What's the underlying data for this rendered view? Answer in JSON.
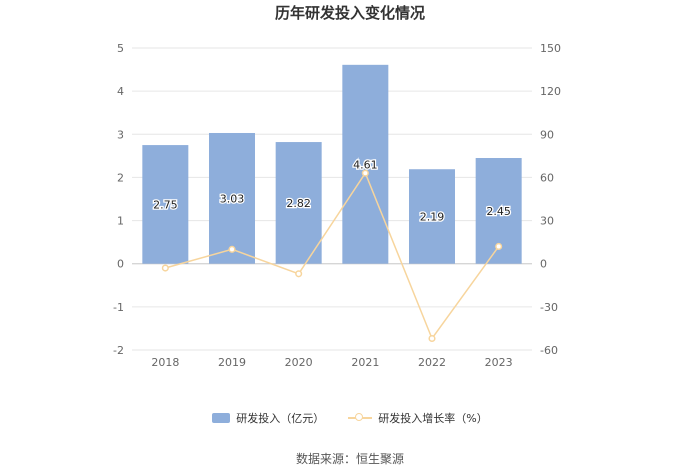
{
  "title": "历年研发投入变化情况",
  "source": "数据来源：恒生聚源",
  "colors": {
    "bar": "#8eaedb",
    "line": "#f7d59d",
    "grid": "#e6e6e6",
    "axis_text": "#666666"
  },
  "chart_data": {
    "type": "bar",
    "categories": [
      "2018",
      "2019",
      "2020",
      "2021",
      "2022",
      "2023"
    ],
    "series": [
      {
        "name": "研发投入（亿元）",
        "type": "bar",
        "axis": "left",
        "values": [
          2.75,
          3.03,
          2.82,
          4.61,
          2.19,
          2.45
        ],
        "labels": [
          "2.75",
          "3.03",
          "2.82",
          "4.61",
          "2.19",
          "2.45"
        ]
      },
      {
        "name": "研发投入增长率（%）",
        "type": "line",
        "axis": "right",
        "values": [
          -3,
          10,
          -7,
          63,
          -52,
          12
        ]
      }
    ],
    "y_left": {
      "min": -2,
      "max": 5,
      "ticks": [
        "-2",
        "-1",
        "0",
        "1",
        "2",
        "3",
        "4",
        "5"
      ]
    },
    "y_right": {
      "min": -60,
      "max": 150,
      "ticks": [
        "-60",
        "-30",
        "0",
        "30",
        "60",
        "90",
        "120",
        "150"
      ]
    },
    "grid": true,
    "legend_position": "bottom"
  }
}
